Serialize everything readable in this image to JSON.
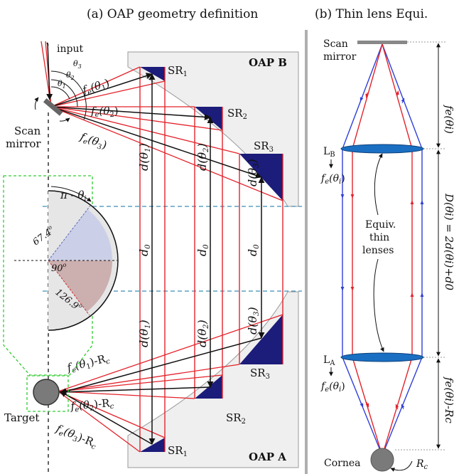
{
  "panel_a": {
    "title": "(a) OAP geometry definition",
    "input": "input",
    "scan": "Scan",
    "mirror": "mirror",
    "theta1": "θ",
    "theta1_sub": "1",
    "theta2": "θ",
    "theta2_sub": "2",
    "theta3": "θ",
    "theta3_sub": "3",
    "fe1": "f",
    "fe1_rest": "(θ",
    "fe1_end": ")",
    "fe2": "f",
    "fe3": "f",
    "sub_e": "e",
    "sub_1": "1",
    "sub_2": "2",
    "sub_3": "3",
    "close_paren": ")",
    "minus_rc": ")-R",
    "sub_c": "c",
    "oap_b": "OAP B",
    "oap_a": "OAP A",
    "sr": "SR",
    "d0": "d",
    "d0_sub": "0",
    "dtheta": "d(θ",
    "target": "Target",
    "pi_theta": "π - θ",
    "sub_i": "i",
    "angle_674": "67.4",
    "angle_90": "90",
    "angle_1269": "126.9",
    "deg": "o"
  },
  "panel_b": {
    "title": "(b) Thin lens Equi.",
    "scan": "Scan",
    "mirror": "mirror",
    "lb": "L",
    "lb_sub": "B",
    "la": "L",
    "la_sub": "A",
    "fe_thetai": "f",
    "fe_rest": "(θ",
    "sub_i": "i",
    "close_paren": ")",
    "equiv1": "Equiv.",
    "equiv2": "thin",
    "equiv3": "lenses",
    "cornea": "Cornea",
    "rc": "R",
    "rc_sub": "c",
    "dim_top": "fe(θi)",
    "dim_mid": "D(θi) = 2d(θi)+d0",
    "dim_bot": "fe(θi)-Rc"
  },
  "colors": {
    "red": "#e3232b",
    "blue": "#2f3fd8",
    "navy": "#1c1c7a",
    "lens": "#1a6fc2",
    "panel_gray": "#efefef",
    "dash_teal": "#3a8fb5",
    "green_dash": "#33cc33"
  }
}
